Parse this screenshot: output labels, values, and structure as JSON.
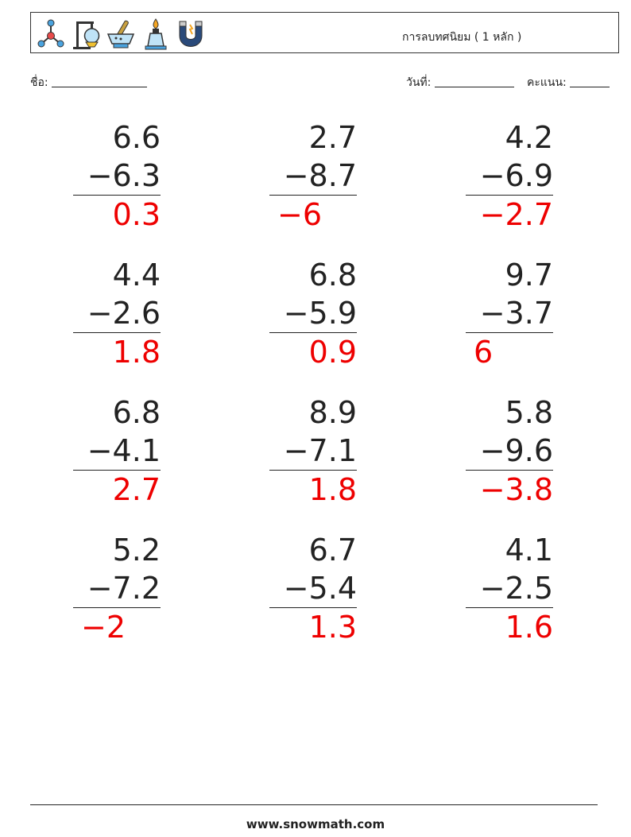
{
  "header": {
    "title": "การลบทศนิยม ( 1 หลัก )",
    "icons": [
      "molecule-icon",
      "lab-stand-flask-icon",
      "mortar-pestle-icon",
      "bunsen-burner-icon",
      "magnet-icon"
    ]
  },
  "meta": {
    "name_label": "ชื่อ:",
    "date_label": "วันที่:",
    "score_label": "คะแนน:"
  },
  "problems": [
    {
      "top": "6.6",
      "bottom": "−6.3",
      "answer": "0.3"
    },
    {
      "top": "2.7",
      "bottom": "−8.7",
      "answer": "−6"
    },
    {
      "top": "4.2",
      "bottom": "−6.9",
      "answer": "−2.7"
    },
    {
      "top": "4.4",
      "bottom": "−2.6",
      "answer": "1.8"
    },
    {
      "top": "6.8",
      "bottom": "−5.9",
      "answer": "0.9"
    },
    {
      "top": "9.7",
      "bottom": "−3.7",
      "answer": "6"
    },
    {
      "top": "6.8",
      "bottom": "−4.1",
      "answer": "2.7"
    },
    {
      "top": "8.9",
      "bottom": "−7.1",
      "answer": "1.8"
    },
    {
      "top": "5.8",
      "bottom": "−9.6",
      "answer": "−3.8"
    },
    {
      "top": "5.2",
      "bottom": "−7.2",
      "answer": "−2"
    },
    {
      "top": "6.7",
      "bottom": "−5.4",
      "answer": "1.3"
    },
    {
      "top": "4.1",
      "bottom": "−2.5",
      "answer": "1.6"
    }
  ],
  "colors": {
    "answer": "#ee0000",
    "text": "#222222"
  },
  "footer": {
    "site": "www.snowmath.com"
  }
}
